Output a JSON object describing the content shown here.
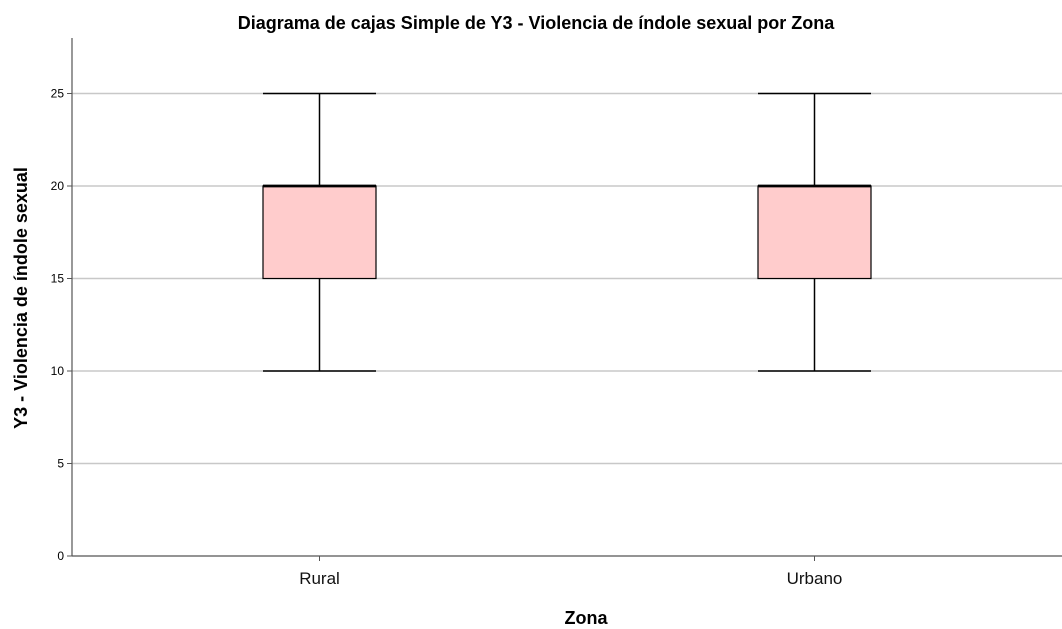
{
  "chart_data": {
    "type": "box",
    "title": "Diagrama de cajas Simple de Y3 - Violencia de índole sexual por Zona",
    "xlabel": "Zona",
    "ylabel": "Y3 - Violencia de índole sexual",
    "ylim": [
      0,
      28
    ],
    "yticks": [
      0,
      5,
      10,
      15,
      20,
      25
    ],
    "grid": true,
    "categories": [
      "Rural",
      "Urbano"
    ],
    "boxes": [
      {
        "category": "Rural",
        "min": 10,
        "q1": 15,
        "median": 20,
        "q3": 20,
        "max": 25
      },
      {
        "category": "Urbano",
        "min": 10,
        "q1": 15,
        "median": 20,
        "q3": 20,
        "max": 25
      }
    ],
    "colors": {
      "box_fill": "#ffcccc",
      "box_stroke": "#000000",
      "grid": "#c8c8c8",
      "axis": "#555555"
    }
  }
}
